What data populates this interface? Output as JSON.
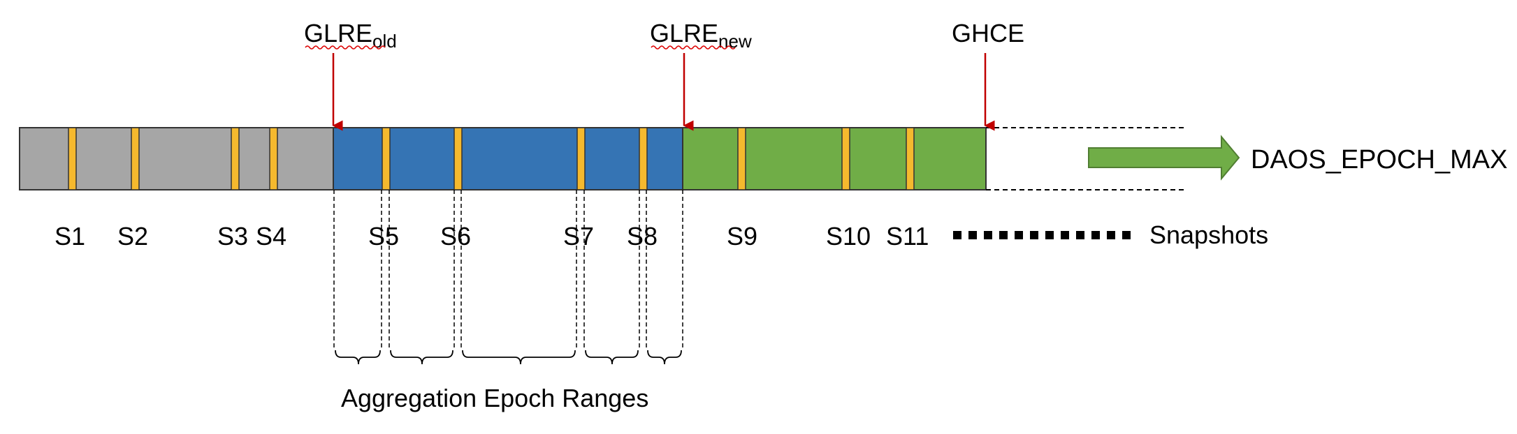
{
  "markers": {
    "glre_old": {
      "main": "GLRE",
      "sub": "old"
    },
    "glre_new": {
      "main": "GLRE",
      "sub": "new"
    },
    "ghce": {
      "main": "GHCE"
    }
  },
  "snapshots": {
    "labels": [
      "S1",
      "S2",
      "S3",
      "S4",
      "S5",
      "S6",
      "S7",
      "S8",
      "S9",
      "S10",
      "S11"
    ],
    "legend": "Snapshots"
  },
  "epoch_max": "DAOS_EPOCH_MAX",
  "aggregation_label": "Aggregation Epoch Ranges",
  "colors": {
    "aggregated": "#a6a6a6",
    "pending": "#3574b4",
    "recent": "#70ad47",
    "snapshot": "#f5b92e",
    "marker_arrow": "#c00000",
    "big_arrow": "#70ad47"
  }
}
